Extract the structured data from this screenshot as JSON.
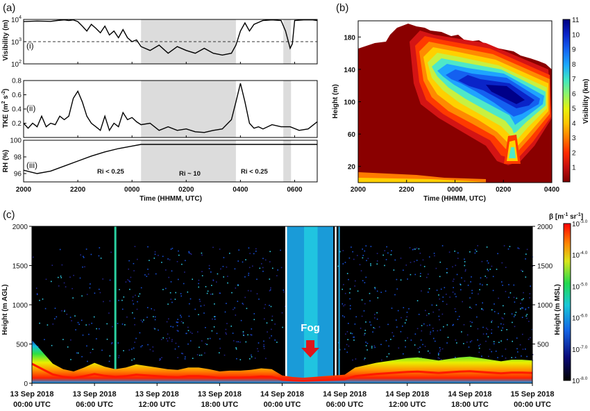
{
  "panels": {
    "a": {
      "label": "(a)",
      "roman": [
        "(i)",
        "(ii)",
        "(iii)"
      ]
    },
    "b": {
      "label": "(b)"
    },
    "c": {
      "label": "(c)"
    }
  },
  "annotations": {
    "ri_low_1": "Ri < 0.25",
    "ri_mid": "Ri ~ 10",
    "ri_low_2": "Ri < 0.25",
    "fog": "Fog"
  },
  "colors": {
    "shading": "#dcdcdc",
    "fog_arrow": "#e0151a",
    "panel_b_colormap": [
      "#7f0000",
      "#c50e0e",
      "#ff2a00",
      "#ff7a00",
      "#ffc400",
      "#e7f20e",
      "#8ef56b",
      "#3ee6c4",
      "#1ba8ff",
      "#1360f0",
      "#0a22c8",
      "#000080"
    ],
    "panel_c_colormap": [
      "#000000",
      "#0a0a7a",
      "#1565e6",
      "#19c8d8",
      "#22d94e",
      "#d9e61c",
      "#ff7f00",
      "#ff0000"
    ]
  },
  "chart_data": [
    {
      "id": "a-i",
      "type": "line",
      "xlabel": "",
      "ylabel": "Visibility (m)",
      "y_scale": "log",
      "ylim": [
        100,
        10000
      ],
      "y_ticks": [
        "10^2",
        "10^3",
        "10^4"
      ],
      "x_ticks": [],
      "reference_line": {
        "y": 1000,
        "style": "dashed"
      },
      "shaded_intervals": [
        [
          "0020",
          "0350"
        ],
        [
          "0535",
          "0552"
        ]
      ],
      "series": [
        {
          "x": [
            "2000",
            "2030",
            "2100",
            "2115",
            "2130",
            "2140",
            "2150",
            "2200",
            "2210",
            "2220",
            "2230",
            "2240",
            "2250",
            "2300",
            "2310",
            "2320",
            "2330",
            "2340",
            "2350",
            "0000",
            "0010",
            "0020",
            "0040",
            "0100",
            "0120",
            "0140",
            "0200",
            "0220",
            "0240",
            "0300",
            "0320",
            "0340",
            "0350",
            "0400",
            "0410",
            "0420",
            "0430",
            "0450",
            "0510",
            "0530",
            "0540",
            "0550",
            "0555",
            "0600",
            "0620",
            "0640",
            "0650"
          ],
          "values": [
            8000,
            8500,
            8200,
            9000,
            9500,
            9000,
            9500,
            8000,
            5000,
            3000,
            6000,
            4000,
            2500,
            5000,
            2000,
            3000,
            1500,
            3500,
            1500,
            1000,
            1200,
            600,
            400,
            700,
            300,
            600,
            400,
            300,
            500,
            300,
            250,
            300,
            700,
            3000,
            7000,
            3000,
            6000,
            9000,
            9500,
            9000,
            3000,
            500,
            800,
            9000,
            9500,
            9500,
            9000
          ]
        }
      ]
    },
    {
      "id": "a-ii",
      "type": "line",
      "ylabel": "TKE (m^2 s^-2)",
      "ylim": [
        0,
        0.8
      ],
      "y_ticks": [
        "0.2",
        "0.4",
        "0.6",
        "0.8"
      ],
      "x_ticks": [],
      "shaded_intervals": [
        [
          "0020",
          "0350"
        ],
        [
          "0535",
          "0552"
        ]
      ],
      "series": [
        {
          "x": [
            "2000",
            "2010",
            "2020",
            "2030",
            "2040",
            "2050",
            "2100",
            "2110",
            "2120",
            "2130",
            "2140",
            "2150",
            "2200",
            "2210",
            "2220",
            "2230",
            "2240",
            "2250",
            "2300",
            "2310",
            "2320",
            "2330",
            "2340",
            "2350",
            "0000",
            "0010",
            "0020",
            "0040",
            "0100",
            "0120",
            "0140",
            "0200",
            "0220",
            "0240",
            "0300",
            "0320",
            "0340",
            "0350",
            "0400",
            "0410",
            "0420",
            "0430",
            "0440",
            "0450",
            "0510",
            "0530",
            "0550",
            "0610",
            "0630",
            "0650"
          ],
          "values": [
            0.2,
            0.13,
            0.2,
            0.15,
            0.3,
            0.15,
            0.2,
            0.18,
            0.3,
            0.25,
            0.3,
            0.55,
            0.65,
            0.5,
            0.3,
            0.2,
            0.15,
            0.1,
            0.3,
            0.1,
            0.2,
            0.15,
            0.35,
            0.25,
            0.28,
            0.22,
            0.18,
            0.2,
            0.1,
            0.15,
            0.1,
            0.12,
            0.08,
            0.07,
            0.1,
            0.12,
            0.25,
            0.5,
            0.76,
            0.5,
            0.2,
            0.13,
            0.15,
            0.12,
            0.18,
            0.15,
            0.15,
            0.1,
            0.12,
            0.22
          ]
        }
      ]
    },
    {
      "id": "a-iii",
      "type": "line",
      "xlabel": "Time (HHMM, UTC)",
      "ylabel": "RH (%)",
      "ylim": [
        95,
        100
      ],
      "y_ticks": [
        "96",
        "98",
        "100"
      ],
      "x_ticks": [
        "2000",
        "2200",
        "0000",
        "0200",
        "0400",
        "0600"
      ],
      "shaded_intervals": [
        [
          "0020",
          "0350"
        ],
        [
          "0535",
          "0552"
        ]
      ],
      "series": [
        {
          "x": [
            "2000",
            "2030",
            "2100",
            "2130",
            "2200",
            "2230",
            "2300",
            "2330",
            "0000",
            "0020",
            "0100",
            "0200",
            "0300",
            "0400",
            "0500",
            "0600",
            "0650"
          ],
          "values": [
            96.4,
            96.0,
            96.3,
            96.9,
            97.5,
            98.1,
            98.6,
            99.0,
            99.3,
            99.5,
            99.5,
            99.5,
            99.5,
            99.5,
            99.5,
            99.5,
            99.5
          ]
        }
      ]
    },
    {
      "id": "b",
      "type": "heatmap",
      "xlabel": "Time (HHMM, UTC)",
      "ylabel": "Height (m)",
      "xlim": [
        "2000",
        "0400"
      ],
      "ylim": [
        0,
        200
      ],
      "x_ticks": [
        "2000",
        "2200",
        "0000",
        "0200",
        "0400"
      ],
      "y_ticks": [
        "20",
        "60",
        "100",
        "140",
        "180"
      ],
      "colorbar": {
        "label": "Visibility (km)",
        "min": 0,
        "max": 11,
        "ticks": [
          "1",
          "2",
          "3",
          "4",
          "5",
          "6",
          "7",
          "8",
          "9",
          "10",
          "11"
        ]
      },
      "regions": [
        {
          "description_free": false,
          "time_range": [
            "2000",
            "2200"
          ],
          "height_range": [
            0,
            180
          ],
          "visibility_km": 0.5
        },
        {
          "time_range": [
            "2200",
            "2220"
          ],
          "height_range": [
            30,
            190
          ],
          "visibility_km": 2.5
        },
        {
          "time_range": [
            "2220",
            "0000"
          ],
          "height_range": [
            60,
            180
          ],
          "visibility_km": 5
        },
        {
          "time_range": [
            "0000",
            "0300"
          ],
          "height_range": [
            100,
            160
          ],
          "visibility_km": 9.5
        },
        {
          "time_range": [
            "0200",
            "0300"
          ],
          "height_range": [
            90,
            140
          ],
          "visibility_km": 10.5
        },
        {
          "time_range": [
            "0220",
            "0240"
          ],
          "height_range": [
            20,
            60
          ],
          "visibility_km": 5
        }
      ]
    },
    {
      "id": "c",
      "type": "heatmap",
      "xlabel": "",
      "ylabel": "Height (m AGL)",
      "ylabel_right": "Height (m MSL)",
      "ylim": [
        0,
        2000
      ],
      "y_ticks": [
        "0",
        "500",
        "1000",
        "1500",
        "2000"
      ],
      "y_ticks_right": [
        "500",
        "1000",
        "1500",
        "2000"
      ],
      "x_ticks": [
        [
          "13 Sep 2018",
          "00:00 UTC"
        ],
        [
          "13 Sep 2018",
          "06:00 UTC"
        ],
        [
          "13 Sep 2018",
          "12:00 UTC"
        ],
        [
          "13 Sep 2018",
          "18:00 UTC"
        ],
        [
          "14 Sep 2018",
          "00:00 UTC"
        ],
        [
          "14 Sep 2018",
          "06:00 UTC"
        ],
        [
          "14 Sep 2018",
          "12:00 UTC"
        ],
        [
          "14 Sep 2018",
          "18:00 UTC"
        ],
        [
          "15 Sep 2018",
          "00:00 UTC"
        ]
      ],
      "colorbar": {
        "label": "β [m-1 sr-1]",
        "ticks": [
          "10-3.0",
          "10-4.0",
          "10-5.0",
          "10-6.0",
          "10-7.0",
          "10-8.0"
        ]
      },
      "layer_top_m_by_hour": [
        550,
        400,
        250,
        180,
        150,
        200,
        260,
        210,
        180,
        200,
        240,
        220,
        200,
        180,
        170,
        200,
        200,
        180,
        150,
        160,
        160,
        170,
        190,
        180,
        100,
        80,
        70,
        80,
        90,
        100,
        110,
        200,
        230,
        260,
        280,
        300,
        320,
        330,
        310,
        290,
        310,
        330,
        340,
        320,
        300,
        280,
        300,
        300,
        290
      ]
    }
  ]
}
